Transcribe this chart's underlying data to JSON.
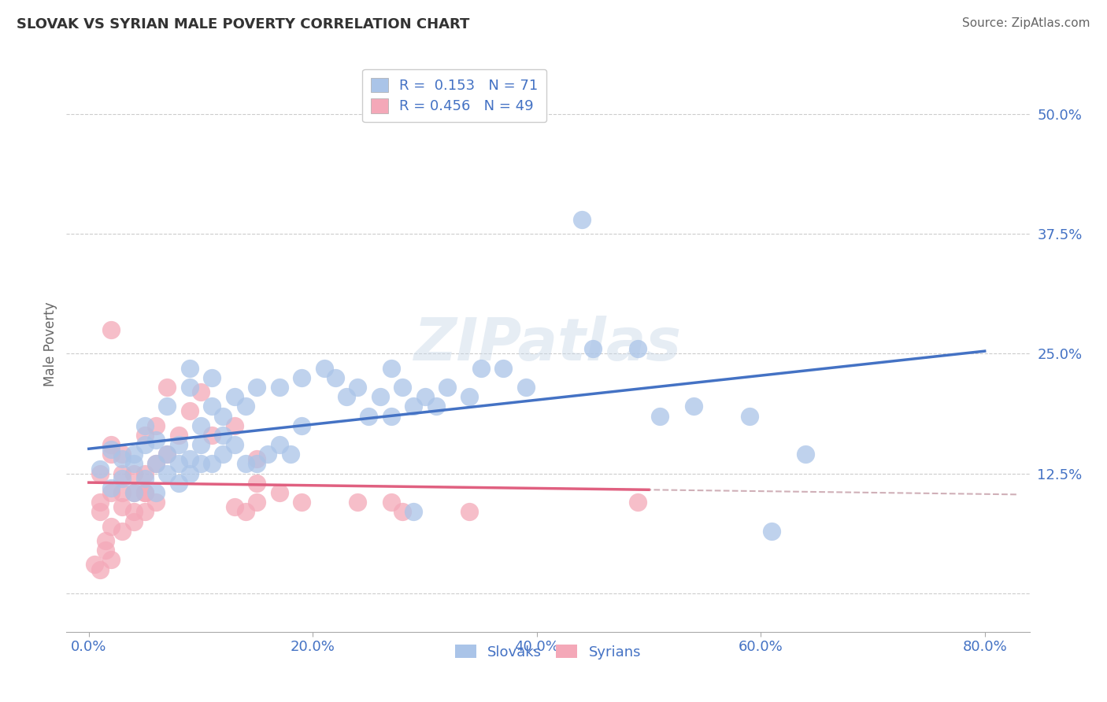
{
  "title": "SLOVAK VS SYRIAN MALE POVERTY CORRELATION CHART",
  "source": "Source: ZipAtlas.com",
  "ylabel_label": "Male Poverty",
  "x_ticks": [
    0.0,
    0.2,
    0.4,
    0.6,
    0.8
  ],
  "x_tick_labels": [
    "0.0%",
    "20.0%",
    "40.0%",
    "60.0%",
    "80.0%"
  ],
  "x_lim": [
    -0.02,
    0.84
  ],
  "y_lim": [
    -0.04,
    0.56
  ],
  "y_ticks": [
    0.0,
    0.125,
    0.25,
    0.375,
    0.5
  ],
  "y_tick_labels": [
    "",
    "12.5%",
    "25.0%",
    "37.5%",
    "50.0%"
  ],
  "grid_color": "#cccccc",
  "background_color": "#ffffff",
  "watermark_text": "ZIPatlas",
  "legend_R1": "0.153",
  "legend_N1": "71",
  "legend_R2": "0.456",
  "legend_N2": "49",
  "slovak_color": "#aac4e8",
  "syrian_color": "#f4a8b8",
  "slovak_line_color": "#4472c4",
  "syrian_line_color": "#e06080",
  "trend_line_color": "#d0b0b8",
  "label_color": "#4472c4",
  "slovak_scatter": [
    [
      0.01,
      0.13
    ],
    [
      0.02,
      0.15
    ],
    [
      0.02,
      0.11
    ],
    [
      0.03,
      0.14
    ],
    [
      0.03,
      0.12
    ],
    [
      0.04,
      0.145
    ],
    [
      0.04,
      0.105
    ],
    [
      0.04,
      0.135
    ],
    [
      0.05,
      0.12
    ],
    [
      0.05,
      0.155
    ],
    [
      0.05,
      0.175
    ],
    [
      0.06,
      0.135
    ],
    [
      0.06,
      0.105
    ],
    [
      0.06,
      0.16
    ],
    [
      0.07,
      0.125
    ],
    [
      0.07,
      0.145
    ],
    [
      0.07,
      0.195
    ],
    [
      0.08,
      0.115
    ],
    [
      0.08,
      0.135
    ],
    [
      0.08,
      0.155
    ],
    [
      0.09,
      0.125
    ],
    [
      0.09,
      0.14
    ],
    [
      0.09,
      0.215
    ],
    [
      0.09,
      0.235
    ],
    [
      0.1,
      0.135
    ],
    [
      0.1,
      0.155
    ],
    [
      0.1,
      0.175
    ],
    [
      0.11,
      0.135
    ],
    [
      0.11,
      0.195
    ],
    [
      0.11,
      0.225
    ],
    [
      0.12,
      0.145
    ],
    [
      0.12,
      0.165
    ],
    [
      0.12,
      0.185
    ],
    [
      0.13,
      0.205
    ],
    [
      0.13,
      0.155
    ],
    [
      0.14,
      0.135
    ],
    [
      0.14,
      0.195
    ],
    [
      0.15,
      0.135
    ],
    [
      0.15,
      0.215
    ],
    [
      0.16,
      0.145
    ],
    [
      0.17,
      0.155
    ],
    [
      0.17,
      0.215
    ],
    [
      0.18,
      0.145
    ],
    [
      0.19,
      0.225
    ],
    [
      0.19,
      0.175
    ],
    [
      0.21,
      0.235
    ],
    [
      0.22,
      0.225
    ],
    [
      0.23,
      0.205
    ],
    [
      0.24,
      0.215
    ],
    [
      0.25,
      0.185
    ],
    [
      0.26,
      0.205
    ],
    [
      0.27,
      0.185
    ],
    [
      0.27,
      0.235
    ],
    [
      0.28,
      0.215
    ],
    [
      0.29,
      0.195
    ],
    [
      0.3,
      0.205
    ],
    [
      0.31,
      0.195
    ],
    [
      0.32,
      0.215
    ],
    [
      0.34,
      0.205
    ],
    [
      0.35,
      0.235
    ],
    [
      0.37,
      0.235
    ],
    [
      0.39,
      0.215
    ],
    [
      0.44,
      0.39
    ],
    [
      0.45,
      0.255
    ],
    [
      0.49,
      0.255
    ],
    [
      0.51,
      0.185
    ],
    [
      0.54,
      0.195
    ],
    [
      0.59,
      0.185
    ],
    [
      0.61,
      0.065
    ],
    [
      0.64,
      0.145
    ],
    [
      0.29,
      0.085
    ]
  ],
  "syrian_scatter": [
    [
      0.01,
      0.125
    ],
    [
      0.01,
      0.085
    ],
    [
      0.02,
      0.07
    ],
    [
      0.02,
      0.105
    ],
    [
      0.02,
      0.145
    ],
    [
      0.02,
      0.275
    ],
    [
      0.03,
      0.09
    ],
    [
      0.03,
      0.105
    ],
    [
      0.03,
      0.125
    ],
    [
      0.03,
      0.145
    ],
    [
      0.04,
      0.085
    ],
    [
      0.04,
      0.105
    ],
    [
      0.04,
      0.125
    ],
    [
      0.04,
      0.075
    ],
    [
      0.05,
      0.085
    ],
    [
      0.05,
      0.105
    ],
    [
      0.05,
      0.125
    ],
    [
      0.05,
      0.165
    ],
    [
      0.05,
      0.105
    ],
    [
      0.06,
      0.095
    ],
    [
      0.06,
      0.135
    ],
    [
      0.06,
      0.175
    ],
    [
      0.07,
      0.145
    ],
    [
      0.07,
      0.215
    ],
    [
      0.08,
      0.165
    ],
    [
      0.09,
      0.19
    ],
    [
      0.1,
      0.21
    ],
    [
      0.11,
      0.165
    ],
    [
      0.13,
      0.175
    ],
    [
      0.13,
      0.09
    ],
    [
      0.14,
      0.085
    ],
    [
      0.15,
      0.095
    ],
    [
      0.15,
      0.14
    ],
    [
      0.15,
      0.115
    ],
    [
      0.17,
      0.105
    ],
    [
      0.19,
      0.095
    ],
    [
      0.24,
      0.095
    ],
    [
      0.27,
      0.095
    ],
    [
      0.28,
      0.085
    ],
    [
      0.34,
      0.085
    ],
    [
      0.015,
      0.055
    ],
    [
      0.02,
      0.035
    ],
    [
      0.015,
      0.045
    ],
    [
      0.01,
      0.025
    ],
    [
      0.005,
      0.03
    ],
    [
      0.01,
      0.095
    ],
    [
      0.02,
      0.155
    ],
    [
      0.03,
      0.065
    ],
    [
      0.49,
      0.095
    ]
  ]
}
